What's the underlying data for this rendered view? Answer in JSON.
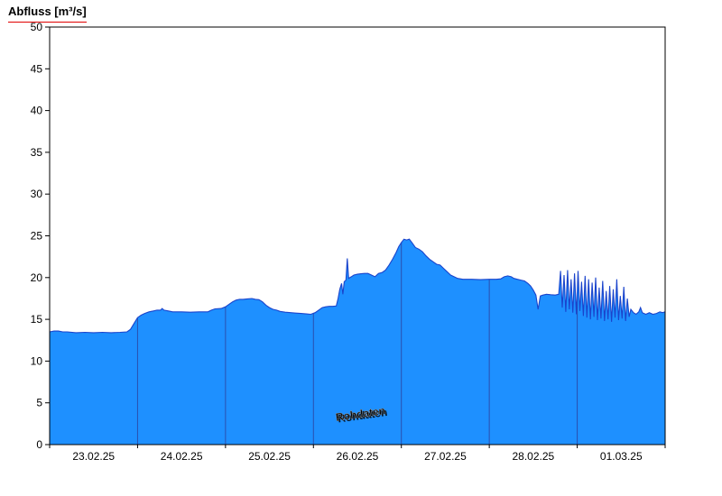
{
  "title": "Abfluss [m³/s]",
  "watermark": "Rohdaten",
  "chart_data": {
    "type": "area",
    "title": "Abfluss [m³/s]",
    "xlabel": "",
    "ylabel": "Abfluss [m³/s]",
    "x_tick_labels": [
      "23.02.25",
      "24.02.25",
      "25.02.25",
      "26.02.25",
      "27.02.25",
      "28.02.25",
      "01.03.25"
    ],
    "x_range_days": [
      0,
      7
    ],
    "ylim": [
      0,
      50
    ],
    "y_ticks": [
      0,
      5,
      10,
      15,
      20,
      25,
      30,
      35,
      40,
      45,
      50
    ],
    "grid": "vertical-day-lines-inside-area",
    "legend": "none",
    "colors": {
      "area_fill": "#1E90FF",
      "line": "#1a44cc",
      "day_gridline": "#2a4fae",
      "axis": "#000000",
      "title_underline": "#e00000",
      "watermark_fill": "#ffffff",
      "watermark_shadow": "#707070"
    },
    "series": [
      {
        "name": "Abfluss",
        "unit": "m³/s",
        "points": [
          [
            0.0,
            13.5
          ],
          [
            0.05,
            13.6
          ],
          [
            0.1,
            13.6
          ],
          [
            0.15,
            13.5
          ],
          [
            0.2,
            13.5
          ],
          [
            0.3,
            13.4
          ],
          [
            0.4,
            13.45
          ],
          [
            0.5,
            13.4
          ],
          [
            0.6,
            13.45
          ],
          [
            0.7,
            13.4
          ],
          [
            0.8,
            13.45
          ],
          [
            0.88,
            13.5
          ],
          [
            0.92,
            13.8
          ],
          [
            0.96,
            14.5
          ],
          [
            1.0,
            15.2
          ],
          [
            1.04,
            15.5
          ],
          [
            1.08,
            15.7
          ],
          [
            1.13,
            15.9
          ],
          [
            1.18,
            16.0
          ],
          [
            1.22,
            16.1
          ],
          [
            1.26,
            16.1
          ],
          [
            1.28,
            16.3
          ],
          [
            1.3,
            16.1
          ],
          [
            1.35,
            16.0
          ],
          [
            1.4,
            15.9
          ],
          [
            1.5,
            15.9
          ],
          [
            1.6,
            15.85
          ],
          [
            1.7,
            15.9
          ],
          [
            1.8,
            15.9
          ],
          [
            1.84,
            16.1
          ],
          [
            1.88,
            16.25
          ],
          [
            1.95,
            16.3
          ],
          [
            2.0,
            16.5
          ],
          [
            2.04,
            16.8
          ],
          [
            2.08,
            17.1
          ],
          [
            2.12,
            17.3
          ],
          [
            2.16,
            17.4
          ],
          [
            2.2,
            17.4
          ],
          [
            2.25,
            17.45
          ],
          [
            2.3,
            17.5
          ],
          [
            2.34,
            17.4
          ],
          [
            2.38,
            17.35
          ],
          [
            2.42,
            17.1
          ],
          [
            2.46,
            16.7
          ],
          [
            2.5,
            16.4
          ],
          [
            2.54,
            16.2
          ],
          [
            2.58,
            16.1
          ],
          [
            2.62,
            15.95
          ],
          [
            2.68,
            15.85
          ],
          [
            2.74,
            15.8
          ],
          [
            2.8,
            15.75
          ],
          [
            2.86,
            15.7
          ],
          [
            2.92,
            15.65
          ],
          [
            2.97,
            15.6
          ],
          [
            3.02,
            15.8
          ],
          [
            3.06,
            16.1
          ],
          [
            3.1,
            16.4
          ],
          [
            3.14,
            16.5
          ],
          [
            3.18,
            16.55
          ],
          [
            3.22,
            16.55
          ],
          [
            3.26,
            16.6
          ],
          [
            3.28,
            17.5
          ],
          [
            3.3,
            18.6
          ],
          [
            3.32,
            19.3
          ],
          [
            3.335,
            18.0
          ],
          [
            3.35,
            19.5
          ],
          [
            3.37,
            19.7
          ],
          [
            3.385,
            22.3
          ],
          [
            3.4,
            19.9
          ],
          [
            3.43,
            20.1
          ],
          [
            3.46,
            20.3
          ],
          [
            3.5,
            20.4
          ],
          [
            3.54,
            20.45
          ],
          [
            3.58,
            20.5
          ],
          [
            3.62,
            20.5
          ],
          [
            3.66,
            20.3
          ],
          [
            3.7,
            20.1
          ],
          [
            3.74,
            20.5
          ],
          [
            3.78,
            20.6
          ],
          [
            3.82,
            20.9
          ],
          [
            3.86,
            21.5
          ],
          [
            3.9,
            22.2
          ],
          [
            3.94,
            23.0
          ],
          [
            3.97,
            23.7
          ],
          [
            4.0,
            24.2
          ],
          [
            4.03,
            24.6
          ],
          [
            4.06,
            24.5
          ],
          [
            4.09,
            24.6
          ],
          [
            4.12,
            24.2
          ],
          [
            4.16,
            23.6
          ],
          [
            4.2,
            23.4
          ],
          [
            4.24,
            23.1
          ],
          [
            4.28,
            22.6
          ],
          [
            4.32,
            22.2
          ],
          [
            4.36,
            21.9
          ],
          [
            4.4,
            21.6
          ],
          [
            4.44,
            21.5
          ],
          [
            4.48,
            21.1
          ],
          [
            4.52,
            20.7
          ],
          [
            4.56,
            20.3
          ],
          [
            4.6,
            20.1
          ],
          [
            4.64,
            19.9
          ],
          [
            4.7,
            19.8
          ],
          [
            4.8,
            19.8
          ],
          [
            4.9,
            19.75
          ],
          [
            5.0,
            19.8
          ],
          [
            5.08,
            19.8
          ],
          [
            5.13,
            19.85
          ],
          [
            5.17,
            20.1
          ],
          [
            5.21,
            20.2
          ],
          [
            5.25,
            20.1
          ],
          [
            5.28,
            19.9
          ],
          [
            5.32,
            19.8
          ],
          [
            5.36,
            19.7
          ],
          [
            5.4,
            19.6
          ],
          [
            5.44,
            19.3
          ],
          [
            5.47,
            19.0
          ],
          [
            5.5,
            18.5
          ],
          [
            5.53,
            17.9
          ],
          [
            5.555,
            16.2
          ],
          [
            5.58,
            17.8
          ],
          [
            5.61,
            17.9
          ],
          [
            5.65,
            18.0
          ],
          [
            5.7,
            17.95
          ],
          [
            5.75,
            17.9
          ],
          [
            5.79,
            18.0
          ],
          [
            5.81,
            20.8
          ],
          [
            5.83,
            16.4
          ],
          [
            5.85,
            20.3
          ],
          [
            5.87,
            15.9
          ],
          [
            5.89,
            20.9
          ],
          [
            5.91,
            16.2
          ],
          [
            5.93,
            19.8
          ],
          [
            5.95,
            15.8
          ],
          [
            5.97,
            20.5
          ],
          [
            5.99,
            15.6
          ],
          [
            6.01,
            20.8
          ],
          [
            6.03,
            16.0
          ],
          [
            6.05,
            19.5
          ],
          [
            6.07,
            15.4
          ],
          [
            6.09,
            20.2
          ],
          [
            6.11,
            15.2
          ],
          [
            6.13,
            19.8
          ],
          [
            6.15,
            15.0
          ],
          [
            6.17,
            19.4
          ],
          [
            6.19,
            15.3
          ],
          [
            6.21,
            20.0
          ],
          [
            6.23,
            14.9
          ],
          [
            6.25,
            18.8
          ],
          [
            6.27,
            15.1
          ],
          [
            6.29,
            19.6
          ],
          [
            6.31,
            14.8
          ],
          [
            6.33,
            18.4
          ],
          [
            6.35,
            15.0
          ],
          [
            6.37,
            19.0
          ],
          [
            6.39,
            14.7
          ],
          [
            6.41,
            18.6
          ],
          [
            6.43,
            15.2
          ],
          [
            6.45,
            19.8
          ],
          [
            6.47,
            14.9
          ],
          [
            6.49,
            17.8
          ],
          [
            6.51,
            15.1
          ],
          [
            6.53,
            18.9
          ],
          [
            6.55,
            14.8
          ],
          [
            6.57,
            17.5
          ],
          [
            6.59,
            15.3
          ],
          [
            6.61,
            16.2
          ],
          [
            6.64,
            15.8
          ],
          [
            6.67,
            15.6
          ],
          [
            6.7,
            15.9
          ],
          [
            6.72,
            16.4
          ],
          [
            6.74,
            15.8
          ],
          [
            6.78,
            15.6
          ],
          [
            6.82,
            15.8
          ],
          [
            6.86,
            15.6
          ],
          [
            6.9,
            15.7
          ],
          [
            6.94,
            15.9
          ],
          [
            6.97,
            15.8
          ],
          [
            7.0,
            15.9
          ]
        ]
      }
    ]
  }
}
